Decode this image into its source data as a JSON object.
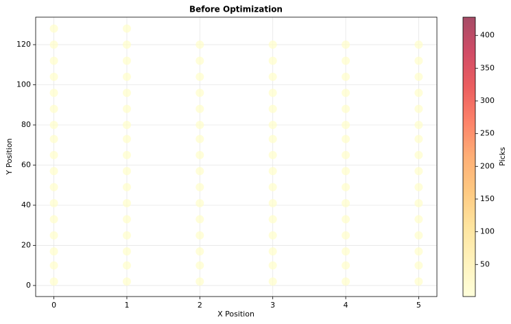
{
  "chart_data": {
    "type": "scatter",
    "title": "Before Optimization",
    "x_label": "X Position",
    "y_label": "Y Position",
    "colorbar_label": "Picks",
    "colormap": "YlOrRd",
    "alpha": 0.7,
    "grid": true,
    "x": [
      0,
      0,
      0,
      0,
      0,
      0,
      0,
      0,
      0,
      0,
      0,
      0,
      0,
      0,
      0,
      0,
      0,
      1,
      1,
      1,
      1,
      1,
      1,
      1,
      1,
      1,
      1,
      1,
      1,
      1,
      1,
      1,
      1,
      1,
      2,
      2,
      2,
      2,
      2,
      2,
      2,
      2,
      2,
      2,
      2,
      2,
      2,
      2,
      2,
      2,
      3,
      3,
      3,
      3,
      3,
      3,
      3,
      3,
      3,
      3,
      3,
      3,
      3,
      3,
      3,
      3,
      4,
      4,
      4,
      4,
      4,
      4,
      4,
      4,
      4,
      4,
      4,
      4,
      4,
      4,
      4,
      4,
      5,
      5,
      5,
      5,
      5,
      5,
      5,
      5,
      5,
      5,
      5,
      5,
      5,
      5,
      5,
      5
    ],
    "y": [
      2,
      10,
      17,
      25,
      33,
      41,
      49,
      57,
      65,
      73,
      80,
      88,
      96,
      104,
      112,
      120,
      128,
      2,
      10,
      17,
      25,
      33,
      41,
      49,
      57,
      65,
      73,
      80,
      88,
      96,
      104,
      112,
      120,
      128,
      2,
      10,
      17,
      25,
      33,
      41,
      49,
      57,
      65,
      73,
      80,
      88,
      96,
      104,
      112,
      120,
      2,
      10,
      17,
      25,
      33,
      41,
      49,
      57,
      65,
      73,
      80,
      88,
      96,
      104,
      112,
      120,
      2,
      10,
      17,
      25,
      33,
      41,
      49,
      57,
      65,
      73,
      80,
      88,
      96,
      104,
      112,
      120,
      2,
      10,
      17,
      25,
      33,
      41,
      49,
      57,
      65,
      73,
      80,
      88,
      96,
      104,
      112,
      120
    ],
    "c": [
      5,
      5,
      5,
      5,
      5,
      5,
      5,
      5,
      5,
      5,
      5,
      5,
      5,
      5,
      5,
      5,
      5,
      5,
      5,
      5,
      5,
      5,
      5,
      5,
      5,
      5,
      5,
      5,
      5,
      5,
      5,
      5,
      5,
      5,
      5,
      5,
      5,
      5,
      5,
      5,
      5,
      5,
      5,
      5,
      5,
      5,
      5,
      5,
      5,
      5,
      5,
      5,
      5,
      5,
      5,
      5,
      5,
      5,
      5,
      5,
      5,
      5,
      5,
      5,
      5,
      5,
      5,
      5,
      5,
      5,
      5,
      5,
      5,
      5,
      5,
      5,
      5,
      5,
      5,
      5,
      5,
      5,
      5,
      5,
      5,
      5,
      5,
      5,
      5,
      5,
      5,
      5,
      5,
      5,
      5,
      5,
      5,
      5
    ],
    "xlim": [
      -0.25,
      5.25
    ],
    "xticks": [
      0,
      1,
      2,
      3,
      4,
      5
    ],
    "ylim": [
      -5.5,
      133.7
    ],
    "yticks": [
      0,
      20,
      40,
      60,
      80,
      100,
      120
    ],
    "clim": [
      1,
      428
    ],
    "cticks": [
      50,
      100,
      150,
      200,
      250,
      300,
      350,
      400
    ]
  }
}
